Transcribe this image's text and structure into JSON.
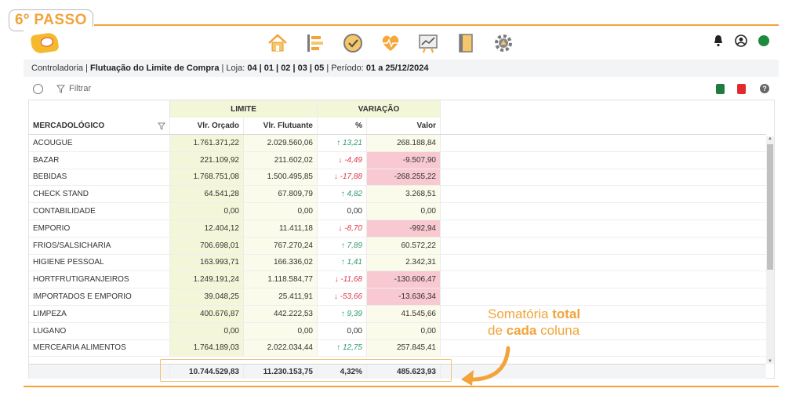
{
  "step": "6º PASSO",
  "colors": {
    "accent": "#f2a33a",
    "limit_bg": "#f4f6d9",
    "negative_bg": "#f9c9d1",
    "up": "#2e9a6b",
    "down": "#e0384a",
    "status": "#1e8a3e"
  },
  "nav_icons": [
    "home-icon",
    "list-icon",
    "check-circle-icon",
    "heart-pulse-icon",
    "chart-board-icon",
    "notebook-icon",
    "gear-cog-icon"
  ],
  "right_icons": [
    "bell-icon",
    "user-circle-icon",
    "status-dot"
  ],
  "breadcrumb": {
    "section": "Controladoria",
    "page": "Flutuação do Limite de Compra",
    "loja_label": "Loja:",
    "lojas": "04 | 01 | 02 | 03 | 05",
    "periodo_label": "Período:",
    "periodo": "01 a 25/12/2024"
  },
  "toolbar": {
    "filter_label": "Filtrar"
  },
  "table": {
    "group_limite": "LIMITE",
    "group_variacao": "VARIAÇÃO",
    "headers": [
      "MERCADOLÓGICO",
      "Vlr. Orçado",
      "Vlr. Flutuante",
      "%",
      "Valor"
    ],
    "rows": [
      {
        "name": "ACOUGUE",
        "orcado": "1.761.371,22",
        "flutuante": "2.029.560,06",
        "dir": "up",
        "pct": "13,21",
        "valor": "268.188,84"
      },
      {
        "name": "BAZAR",
        "orcado": "221.109,92",
        "flutuante": "211.602,02",
        "dir": "down",
        "pct": "-4,49",
        "valor": "-9.507,90"
      },
      {
        "name": "BEBIDAS",
        "orcado": "1.768.751,08",
        "flutuante": "1.500.495,85",
        "dir": "down",
        "pct": "-17,88",
        "valor": "-268.255,22"
      },
      {
        "name": "CHECK STAND",
        "orcado": "64.541,28",
        "flutuante": "67.809,79",
        "dir": "up",
        "pct": "4,82",
        "valor": "3.268,51"
      },
      {
        "name": "CONTABILIDADE",
        "orcado": "0,00",
        "flutuante": "0,00",
        "dir": "none",
        "pct": "0,00",
        "valor": "0,00"
      },
      {
        "name": "EMPORIO",
        "orcado": "12.404,12",
        "flutuante": "11.411,18",
        "dir": "down",
        "pct": "-8,70",
        "valor": "-992,94"
      },
      {
        "name": "FRIOS/SALSICHARIA",
        "orcado": "706.698,01",
        "flutuante": "767.270,24",
        "dir": "up",
        "pct": "7,89",
        "valor": "60.572,22"
      },
      {
        "name": "HIGIENE PESSOAL",
        "orcado": "163.993,71",
        "flutuante": "166.336,02",
        "dir": "up",
        "pct": "1,41",
        "valor": "2.342,31"
      },
      {
        "name": "HORTFRUTIGRANJEIROS",
        "orcado": "1.249.191,24",
        "flutuante": "1.118.584,77",
        "dir": "down",
        "pct": "-11,68",
        "valor": "-130.606,47"
      },
      {
        "name": "IMPORTADOS E EMPORIO",
        "orcado": "39.048,25",
        "flutuante": "25.411,91",
        "dir": "down",
        "pct": "-53,66",
        "valor": "-13.636,34"
      },
      {
        "name": "LIMPEZA",
        "orcado": "400.676,87",
        "flutuante": "442.222,53",
        "dir": "up",
        "pct": "9,39",
        "valor": "41.545,66"
      },
      {
        "name": "LUGANO",
        "orcado": "0,00",
        "flutuante": "0,00",
        "dir": "none",
        "pct": "0,00",
        "valor": "0,00"
      },
      {
        "name": "MERCEARIA ALIMENTOS",
        "orcado": "1.764.189,03",
        "flutuante": "2.022.034,44",
        "dir": "up",
        "pct": "12,75",
        "valor": "257.845,41"
      }
    ],
    "totals": {
      "orcado": "10.744.529,83",
      "flutuante": "11.230.153,75",
      "pct": "4,32%",
      "valor": "485.623,93"
    }
  },
  "annotation": {
    "part1": "Somatória ",
    "part2": "total",
    "part3": "de ",
    "part4": "cada",
    "part5": " coluna"
  }
}
